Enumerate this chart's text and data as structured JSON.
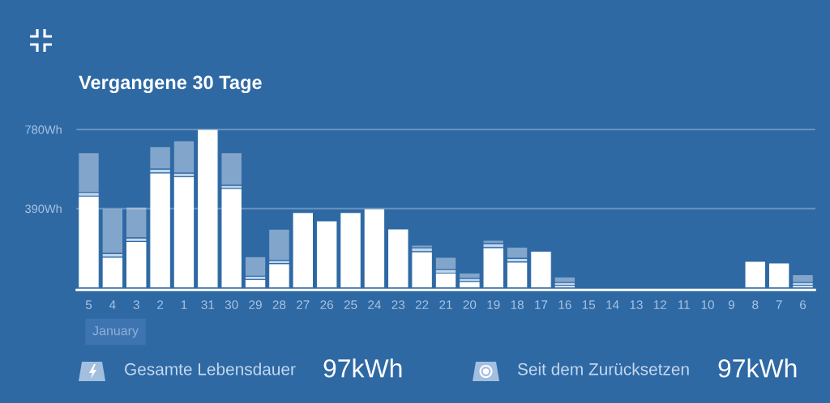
{
  "chart_data": {
    "type": "bar",
    "title": "Vergangene 30 Tage",
    "stacked": true,
    "categories": [
      "5",
      "4",
      "3",
      "2",
      "1",
      "31",
      "30",
      "29",
      "28",
      "27",
      "26",
      "25",
      "24",
      "23",
      "22",
      "21",
      "20",
      "19",
      "18",
      "17",
      "16",
      "15",
      "14",
      "13",
      "12",
      "11",
      "10",
      "9",
      "8",
      "7",
      "6"
    ],
    "series": [
      {
        "color": "#ffffff",
        "values": [
          452,
          151,
          228,
          566,
          547,
          780,
          490,
          41,
          119,
          370,
          329,
          370,
          389,
          289,
          178,
          72,
          31,
          198,
          127,
          180,
          11,
          0,
          0,
          0,
          0,
          0,
          0,
          0,
          130,
          122,
          11
        ]
      },
      {
        "color": "#c2d8ef",
        "values": [
          18,
          18,
          18,
          19,
          18,
          0,
          15,
          16,
          16,
          0,
          0,
          0,
          0,
          0,
          18,
          18,
          15,
          20,
          18,
          0,
          15,
          0,
          0,
          0,
          0,
          0,
          0,
          0,
          0,
          0,
          15
        ]
      },
      {
        "color": "#82a5cb",
        "values": [
          196,
          221,
          151,
          110,
          159,
          0,
          161,
          96,
          153,
          0,
          0,
          0,
          0,
          0,
          14,
          60,
          26,
          16,
          55,
          0,
          27,
          0,
          0,
          0,
          0,
          0,
          0,
          0,
          0,
          0,
          38
        ]
      }
    ],
    "ylim": [
      0,
      780
    ],
    "yticks": [
      {
        "value": 390,
        "label": "390Wh"
      },
      {
        "value": 780,
        "label": "780Wh"
      }
    ],
    "grid": "y",
    "annotations": [
      "January",
      "Gesamte Lebensdauer",
      "97kWh",
      "Seit dem Zurücksetzen",
      "97kWh"
    ]
  }
}
